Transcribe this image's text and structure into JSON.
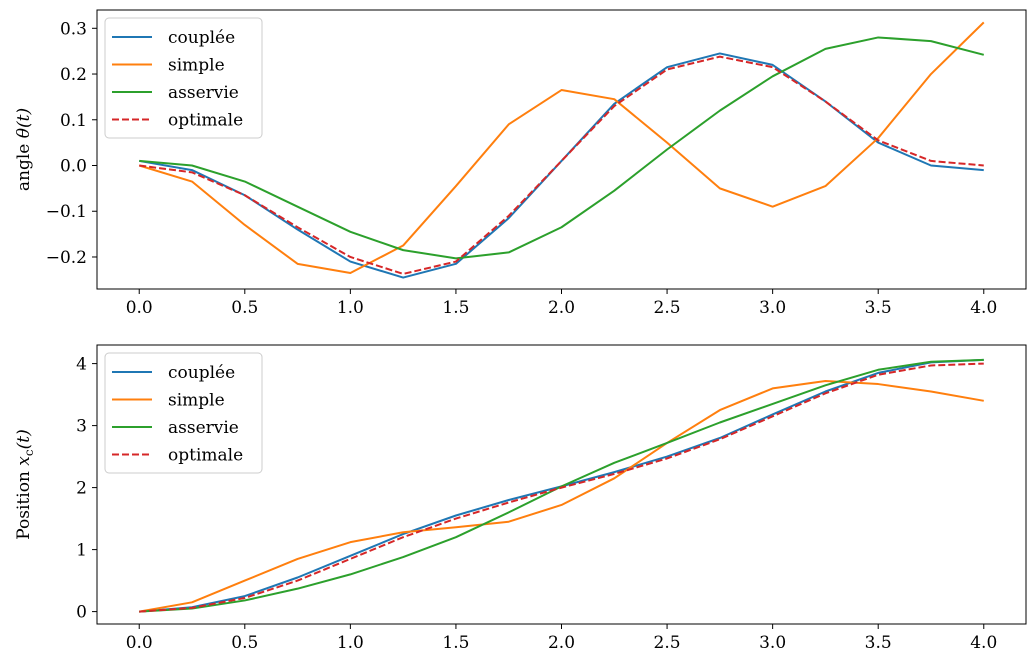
{
  "chart_data": [
    {
      "type": "line",
      "ylabel_prefix": "angle ",
      "ylabel_math": "θ(t)",
      "xlim": [
        -0.2,
        4.2
      ],
      "ylim": [
        -0.27,
        0.34
      ],
      "xticks": [
        0.0,
        0.5,
        1.0,
        1.5,
        2.0,
        2.5,
        3.0,
        3.5,
        4.0
      ],
      "xtick_labels": [
        "0.0",
        "0.5",
        "1.0",
        "1.5",
        "2.0",
        "2.5",
        "3.0",
        "3.5",
        "4.0"
      ],
      "yticks": [
        -0.2,
        -0.1,
        0.0,
        0.1,
        0.2,
        0.3
      ],
      "ytick_labels": [
        "−0.2",
        "−0.1",
        "0.0",
        "0.1",
        "0.2",
        "0.3"
      ],
      "legend_position": "top-left",
      "series": [
        {
          "name": "couplée",
          "color": "#1f77b4",
          "dash": false,
          "x": [
            0,
            0.25,
            0.5,
            0.75,
            1.0,
            1.25,
            1.5,
            1.75,
            2.0,
            2.25,
            2.5,
            2.75,
            3.0,
            3.25,
            3.5,
            3.75,
            4.0
          ],
          "y": [
            0.01,
            -0.01,
            -0.065,
            -0.14,
            -0.21,
            -0.245,
            -0.215,
            -0.115,
            0.01,
            0.135,
            0.215,
            0.245,
            0.22,
            0.14,
            0.05,
            0.0,
            -0.01
          ]
        },
        {
          "name": "simple",
          "color": "#ff7f0e",
          "dash": false,
          "x": [
            0,
            0.25,
            0.5,
            0.75,
            1.0,
            1.25,
            1.5,
            1.75,
            2.0,
            2.25,
            2.5,
            2.75,
            3.0,
            3.25,
            3.5,
            3.75,
            4.0
          ],
          "y": [
            0.0,
            -0.035,
            -0.13,
            -0.215,
            -0.235,
            -0.175,
            -0.045,
            0.09,
            0.165,
            0.145,
            0.05,
            -0.05,
            -0.09,
            -0.045,
            0.06,
            0.2,
            0.313
          ]
        },
        {
          "name": "asservie",
          "color": "#2ca02c",
          "dash": false,
          "x": [
            0,
            0.25,
            0.5,
            0.75,
            1.0,
            1.25,
            1.5,
            1.75,
            2.0,
            2.25,
            2.5,
            2.75,
            3.0,
            3.25,
            3.5,
            3.75,
            4.0
          ],
          "y": [
            0.01,
            0.0,
            -0.035,
            -0.09,
            -0.145,
            -0.185,
            -0.203,
            -0.19,
            -0.135,
            -0.055,
            0.035,
            0.12,
            0.195,
            0.255,
            0.28,
            0.272,
            0.242
          ]
        },
        {
          "name": "optimale",
          "color": "#d62728",
          "dash": true,
          "x": [
            0,
            0.25,
            0.5,
            0.75,
            1.0,
            1.25,
            1.5,
            1.75,
            2.0,
            2.25,
            2.5,
            2.75,
            3.0,
            3.25,
            3.5,
            3.75,
            4.0
          ],
          "y": [
            0.0,
            -0.015,
            -0.065,
            -0.135,
            -0.2,
            -0.237,
            -0.21,
            -0.11,
            0.01,
            0.13,
            0.21,
            0.238,
            0.215,
            0.14,
            0.055,
            0.01,
            0.0
          ]
        }
      ]
    },
    {
      "type": "line",
      "ylabel_prefix": "Position ",
      "ylabel_math": "x",
      "ylabel_sub": "c",
      "ylabel_suffix": "(t)",
      "xlim": [
        -0.2,
        4.2
      ],
      "ylim": [
        -0.2,
        4.3
      ],
      "xticks": [
        0.0,
        0.5,
        1.0,
        1.5,
        2.0,
        2.5,
        3.0,
        3.5,
        4.0
      ],
      "xtick_labels": [
        "0.0",
        "0.5",
        "1.0",
        "1.5",
        "2.0",
        "2.5",
        "3.0",
        "3.5",
        "4.0"
      ],
      "yticks": [
        0,
        1,
        2,
        3,
        4
      ],
      "ytick_labels": [
        "0",
        "1",
        "2",
        "3",
        "4"
      ],
      "legend_position": "top-left",
      "series": [
        {
          "name": "couplée",
          "color": "#1f77b4",
          "dash": false,
          "x": [
            0,
            0.25,
            0.5,
            0.75,
            1.0,
            1.25,
            1.5,
            1.75,
            2.0,
            2.25,
            2.5,
            2.75,
            3.0,
            3.25,
            3.5,
            3.75,
            4.0
          ],
          "y": [
            0.0,
            0.07,
            0.25,
            0.55,
            0.9,
            1.25,
            1.55,
            1.8,
            2.02,
            2.25,
            2.5,
            2.8,
            3.18,
            3.55,
            3.85,
            4.02,
            4.06
          ]
        },
        {
          "name": "simple",
          "color": "#ff7f0e",
          "dash": false,
          "x": [
            0,
            0.25,
            0.5,
            0.75,
            1.0,
            1.25,
            1.5,
            1.75,
            2.0,
            2.25,
            2.5,
            2.75,
            3.0,
            3.25,
            3.5,
            3.75,
            4.0
          ],
          "y": [
            0.0,
            0.15,
            0.5,
            0.85,
            1.12,
            1.28,
            1.36,
            1.45,
            1.72,
            2.15,
            2.72,
            3.25,
            3.6,
            3.72,
            3.67,
            3.55,
            3.4
          ]
        },
        {
          "name": "asservie",
          "color": "#2ca02c",
          "dash": false,
          "x": [
            0,
            0.25,
            0.5,
            0.75,
            1.0,
            1.25,
            1.5,
            1.75,
            2.0,
            2.25,
            2.5,
            2.75,
            3.0,
            3.25,
            3.5,
            3.75,
            4.0
          ],
          "y": [
            0.0,
            0.05,
            0.18,
            0.37,
            0.6,
            0.88,
            1.2,
            1.6,
            2.02,
            2.4,
            2.72,
            3.05,
            3.35,
            3.65,
            3.9,
            4.03,
            4.06
          ]
        },
        {
          "name": "optimale",
          "color": "#d62728",
          "dash": true,
          "x": [
            0,
            0.25,
            0.5,
            0.75,
            1.0,
            1.25,
            1.5,
            1.75,
            2.0,
            2.25,
            2.5,
            2.75,
            3.0,
            3.25,
            3.5,
            3.75,
            4.0
          ],
          "y": [
            0.0,
            0.06,
            0.22,
            0.5,
            0.85,
            1.2,
            1.5,
            1.76,
            2.0,
            2.22,
            2.47,
            2.78,
            3.15,
            3.52,
            3.82,
            3.97,
            4.0
          ]
        }
      ]
    }
  ]
}
